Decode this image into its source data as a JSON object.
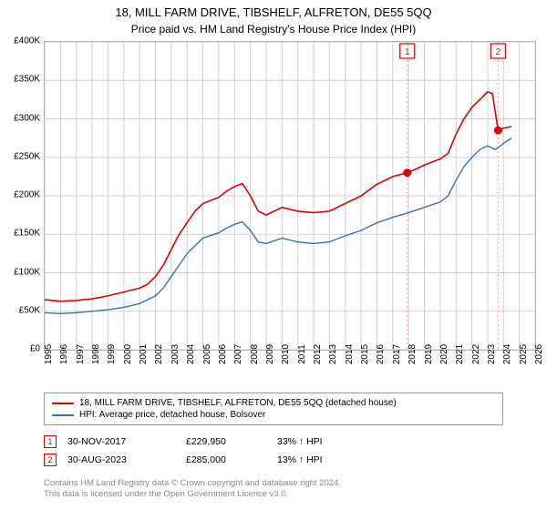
{
  "header": {
    "title": "18, MILL FARM DRIVE, TIBSHELF, ALFRETON, DE55 5QQ",
    "subtitle": "Price paid vs. HM Land Registry's House Price Index (HPI)"
  },
  "chart": {
    "type": "line",
    "background_color": "#ffffff",
    "plot_border_color": "#999999",
    "grid_color": "#d0d0d0",
    "ylim": [
      0,
      400000
    ],
    "ytick_step": 50000,
    "yticks": [
      "£0",
      "£50K",
      "£100K",
      "£150K",
      "£200K",
      "£250K",
      "£300K",
      "£350K",
      "£400K"
    ],
    "xlim": [
      1995,
      2026
    ],
    "xticks": [
      1995,
      1996,
      1997,
      1998,
      1999,
      2000,
      2001,
      2002,
      2003,
      2004,
      2005,
      2006,
      2007,
      2008,
      2009,
      2010,
      2011,
      2012,
      2013,
      2014,
      2015,
      2016,
      2017,
      2018,
      2019,
      2020,
      2021,
      2022,
      2023,
      2024,
      2025,
      2026
    ],
    "series": [
      {
        "name": "property",
        "label": "18, MILL FARM DRIVE, TIBSHELF, ALFRETON, DE55 5QQ (detached house)",
        "color": "#e00000",
        "line_width": 1.6,
        "data": [
          [
            1995,
            65000
          ],
          [
            1996,
            63000
          ],
          [
            1997,
            64000
          ],
          [
            1998,
            66000
          ],
          [
            1999,
            70000
          ],
          [
            2000,
            75000
          ],
          [
            2001,
            80000
          ],
          [
            2001.5,
            85000
          ],
          [
            2002,
            95000
          ],
          [
            2002.5,
            110000
          ],
          [
            2003,
            130000
          ],
          [
            2003.5,
            150000
          ],
          [
            2004,
            165000
          ],
          [
            2004.5,
            180000
          ],
          [
            2005,
            190000
          ],
          [
            2006,
            198000
          ],
          [
            2006.5,
            206000
          ],
          [
            2007,
            212000
          ],
          [
            2007.5,
            216000
          ],
          [
            2008,
            200000
          ],
          [
            2008.5,
            180000
          ],
          [
            2009,
            175000
          ],
          [
            2010,
            185000
          ],
          [
            2011,
            180000
          ],
          [
            2012,
            178000
          ],
          [
            2013,
            180000
          ],
          [
            2014,
            190000
          ],
          [
            2015,
            200000
          ],
          [
            2016,
            215000
          ],
          [
            2017,
            225000
          ],
          [
            2017.9,
            230000
          ],
          [
            2018.5,
            235000
          ],
          [
            2019,
            240000
          ],
          [
            2020,
            248000
          ],
          [
            2020.5,
            255000
          ],
          [
            2021,
            280000
          ],
          [
            2021.5,
            300000
          ],
          [
            2022,
            315000
          ],
          [
            2022.5,
            325000
          ],
          [
            2023,
            335000
          ],
          [
            2023.3,
            333000
          ],
          [
            2023.66,
            285000
          ],
          [
            2024,
            288000
          ],
          [
            2024.5,
            290000
          ]
        ]
      },
      {
        "name": "hpi",
        "label": "HPI: Average price, detached house, Bolsover",
        "color": "#3a6fb7",
        "line_width": 1.4,
        "data": [
          [
            1995,
            48000
          ],
          [
            1996,
            47000
          ],
          [
            1997,
            48000
          ],
          [
            1998,
            50000
          ],
          [
            1999,
            52000
          ],
          [
            2000,
            55000
          ],
          [
            2001,
            60000
          ],
          [
            2002,
            70000
          ],
          [
            2002.5,
            80000
          ],
          [
            2003,
            95000
          ],
          [
            2003.5,
            110000
          ],
          [
            2004,
            125000
          ],
          [
            2004.5,
            135000
          ],
          [
            2005,
            145000
          ],
          [
            2006,
            152000
          ],
          [
            2006.5,
            158000
          ],
          [
            2007,
            163000
          ],
          [
            2007.5,
            166000
          ],
          [
            2008,
            155000
          ],
          [
            2008.5,
            140000
          ],
          [
            2009,
            138000
          ],
          [
            2010,
            145000
          ],
          [
            2011,
            140000
          ],
          [
            2012,
            138000
          ],
          [
            2013,
            140000
          ],
          [
            2014,
            148000
          ],
          [
            2015,
            155000
          ],
          [
            2016,
            165000
          ],
          [
            2017,
            172000
          ],
          [
            2018,
            178000
          ],
          [
            2019,
            185000
          ],
          [
            2020,
            192000
          ],
          [
            2020.5,
            200000
          ],
          [
            2021,
            220000
          ],
          [
            2021.5,
            238000
          ],
          [
            2022,
            250000
          ],
          [
            2022.5,
            260000
          ],
          [
            2023,
            265000
          ],
          [
            2023.5,
            260000
          ],
          [
            2024,
            268000
          ],
          [
            2024.5,
            275000
          ]
        ]
      }
    ],
    "sale_markers": [
      {
        "n": "1",
        "x": 2017.92,
        "y": 229950,
        "color": "#e00000",
        "line_color": "#e8a0a0"
      },
      {
        "n": "2",
        "x": 2023.66,
        "y": 285000,
        "color": "#e00000",
        "line_color": "#e8a0a0"
      }
    ]
  },
  "legend": {
    "items": [
      {
        "color": "#e00000",
        "label": "18, MILL FARM DRIVE, TIBSHELF, ALFRETON, DE55 5QQ (detached house)"
      },
      {
        "color": "#3a6fb7",
        "label": "HPI: Average price, detached house, Bolsover"
      }
    ]
  },
  "sales": [
    {
      "n": "1",
      "marker_color": "#e00000",
      "date": "30-NOV-2017",
      "price": "£229,950",
      "delta": "33% ↑ HPI"
    },
    {
      "n": "2",
      "marker_color": "#e00000",
      "date": "30-AUG-2023",
      "price": "£285,000",
      "delta": "13% ↑ HPI"
    }
  ],
  "footnote": {
    "line1": "Contains HM Land Registry data © Crown copyright and database right 2024.",
    "line2": "This data is licensed under the Open Government Licence v3.0."
  }
}
